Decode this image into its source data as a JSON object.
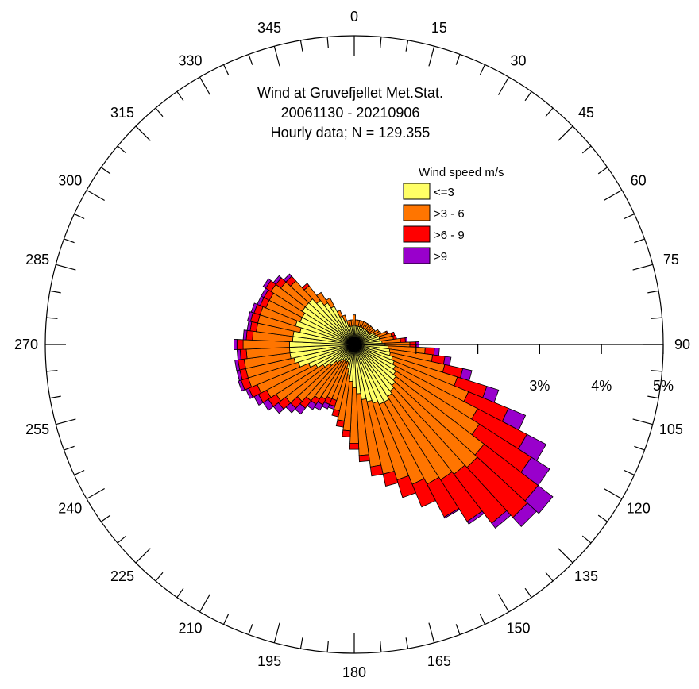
{
  "chart_data": {
    "type": "wind-rose",
    "title": [
      "Wind at Gruvefjellet Met.Stat.",
      "20061130 - 20210906",
      "Hourly data; N = 129.355"
    ],
    "direction_labels": [
      "0",
      "15",
      "30",
      "45",
      "60",
      "75",
      "90",
      "105",
      "120",
      "135",
      "150",
      "165",
      "180",
      "195",
      "210",
      "225",
      "240",
      "255",
      "270",
      "285",
      "300",
      "315",
      "330",
      "345"
    ],
    "radial_ticks": [
      {
        "value": 3,
        "label": "3%"
      },
      {
        "value": 4,
        "label": "4%"
      },
      {
        "value": 5,
        "label": "5%"
      }
    ],
    "rmax": 5,
    "sector_width_deg": 5,
    "legend": {
      "title": "Wind speed m/s",
      "position": "upper-right",
      "classes": [
        {
          "label": "<=3",
          "color": "#ffff66"
        },
        {
          "label": ">3 - 6",
          "color": "#ff7500"
        },
        {
          "label": ">6 - 9",
          "color": "#ff0000"
        },
        {
          "label": ">9",
          "color": "#9900cc"
        }
      ]
    },
    "series": [
      {
        "name": "<=3",
        "values": [
          0.31,
          0.3,
          0.3,
          0.3,
          0.3,
          0.3,
          0.3,
          0.3,
          0.3,
          0.3,
          0.3,
          0.3,
          0.35,
          0.37,
          0.4,
          0.42,
          0.42,
          0.45,
          0.5,
          0.55,
          0.58,
          0.6,
          0.65,
          0.7,
          0.75,
          0.8,
          0.85,
          0.9,
          0.95,
          1.0,
          1.05,
          1.05,
          1.0,
          0.95,
          0.9,
          0.8,
          0.7,
          0.6,
          0.5,
          0.4,
          0.3,
          0.3,
          0.3,
          0.3,
          0.35,
          0.4,
          0.5,
          0.6,
          0.7,
          0.8,
          0.95,
          1.0,
          1.05,
          1.05,
          1.05,
          1.0,
          1.0,
          0.9,
          1.0,
          0.95,
          0.95,
          1.0,
          1.0,
          1.0,
          0.9,
          0.8,
          0.7,
          0.5,
          0.4,
          0.3,
          0.3,
          0.3
        ]
      },
      {
        "name": ">3 - 6",
        "values": [
          0.17,
          0.1,
          0.1,
          0.1,
          0.1,
          0.1,
          0.1,
          0.1,
          0.1,
          0.1,
          0.1,
          0.1,
          0.1,
          0.1,
          0.15,
          0.2,
          0.22,
          0.3,
          0.4,
          0.6,
          0.7,
          0.9,
          1.1,
          1.3,
          1.5,
          1.6,
          1.8,
          1.8,
          1.7,
          1.6,
          1.5,
          1.4,
          1.3,
          1.2,
          1.1,
          1.0,
          0.9,
          0.8,
          0.75,
          0.7,
          0.65,
          0.65,
          0.7,
          0.75,
          0.8,
          0.85,
          0.9,
          0.9,
          0.9,
          0.9,
          0.85,
          0.8,
          0.75,
          0.7,
          0.75,
          0.65,
          0.6,
          0.7,
          0.6,
          0.6,
          0.6,
          0.6,
          0.5,
          0.4,
          0.3,
          0.2,
          0.15,
          0.1,
          0.1,
          0.1,
          0.1,
          0.1
        ]
      },
      {
        "name": ">6 - 9",
        "values": [
          0.0,
          0.0,
          0.0,
          0.0,
          0.0,
          0.0,
          0.0,
          0.0,
          0.0,
          0.0,
          0.0,
          0.0,
          0.0,
          0.0,
          0.02,
          0.05,
          0.05,
          0.08,
          0.1,
          0.15,
          0.2,
          0.3,
          0.5,
          0.7,
          0.9,
          1.0,
          1.1,
          1.1,
          1.0,
          0.8,
          0.6,
          0.4,
          0.3,
          0.2,
          0.15,
          0.1,
          0.1,
          0.1,
          0.1,
          0.1,
          0.1,
          0.1,
          0.1,
          0.1,
          0.15,
          0.15,
          0.15,
          0.15,
          0.15,
          0.15,
          0.12,
          0.1,
          0.1,
          0.1,
          0.1,
          0.1,
          0.1,
          0.12,
          0.1,
          0.1,
          0.1,
          0.1,
          0.1,
          0.1,
          0.05,
          0.0,
          0.0,
          0.0,
          0.0,
          0.0,
          0.0,
          0.0
        ]
      },
      {
        "name": ">9",
        "values": [
          0.0,
          0.0,
          0.0,
          0.0,
          0.0,
          0.0,
          0.0,
          0.0,
          0.0,
          0.0,
          0.0,
          0.0,
          0.0,
          0.0,
          0.0,
          0.0,
          0.0,
          0.03,
          0.05,
          0.08,
          0.1,
          0.15,
          0.2,
          0.3,
          0.35,
          0.35,
          0.3,
          0.2,
          0.1,
          0.05,
          0.02,
          0.0,
          0.0,
          0.0,
          0.0,
          0.0,
          0.0,
          0.0,
          0.0,
          0.0,
          0.05,
          0.08,
          0.1,
          0.1,
          0.12,
          0.1,
          0.1,
          0.1,
          0.08,
          0.05,
          0.05,
          0.05,
          0.05,
          0.05,
          0.05,
          0.05,
          0.05,
          0.05,
          0.05,
          0.05,
          0.05,
          0.05,
          0.05,
          0.05,
          0.0,
          0.0,
          0.0,
          0.0,
          0.0,
          0.0,
          0.0,
          0.0
        ]
      }
    ]
  }
}
